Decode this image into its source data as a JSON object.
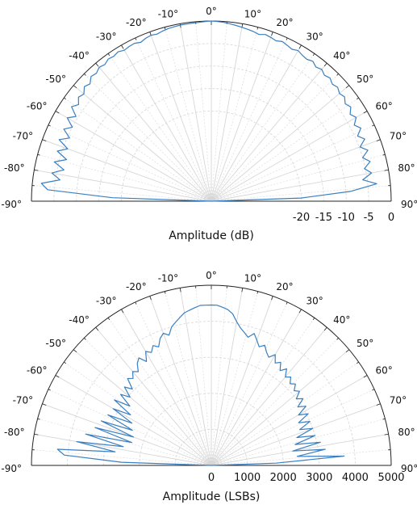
{
  "chart_data": [
    {
      "type": "polar-half",
      "xlabel": "Amplitude (dB)",
      "angle_ticks": [
        "-90°",
        "-80°",
        "-70°",
        "-60°",
        "-50°",
        "-40°",
        "-30°",
        "-20°",
        "-10°",
        "0°",
        "10°",
        "20°",
        "30°",
        "40°",
        "50°",
        "60°",
        "70°",
        "80°",
        "90°"
      ],
      "r_ticks": [
        "-20",
        "-15",
        "-10",
        "-5",
        "0"
      ],
      "r_tick_values": [
        -20,
        -15,
        -10,
        -5,
        0
      ],
      "rlim": [
        -40,
        0
      ],
      "color": "#3a7fc1",
      "series": {
        "angle_deg": [
          -90,
          -88,
          -86,
          -84,
          -82,
          -80,
          -78,
          -76,
          -74,
          -72,
          -70,
          -68,
          -66,
          -64,
          -62,
          -60,
          -58,
          -56,
          -54,
          -52,
          -50,
          -48,
          -46,
          -44,
          -42,
          -40,
          -38,
          -36,
          -34,
          -32,
          -30,
          -28,
          -26,
          -24,
          -22,
          -20,
          -18,
          -16,
          -14,
          -12,
          -10,
          -8,
          -6,
          -4,
          -2,
          0,
          2,
          4,
          6,
          8,
          10,
          12,
          14,
          16,
          18,
          20,
          22,
          24,
          26,
          28,
          30,
          32,
          34,
          36,
          38,
          40,
          42,
          44,
          46,
          48,
          50,
          52,
          54,
          56,
          58,
          60,
          62,
          64,
          66,
          68,
          70,
          72,
          74,
          76,
          78,
          80,
          82,
          84,
          86,
          88,
          90
        ],
        "values_db": [
          -40,
          -18,
          -3.5,
          -2,
          -6,
          -4,
          -6.5,
          -4,
          -6.5,
          -4,
          -6,
          -3.5,
          -5.5,
          -3.5,
          -5,
          -3,
          -4.5,
          -2.5,
          -3.5,
          -2.5,
          -3,
          -2,
          -2.5,
          -1.5,
          -1.8,
          -1.2,
          -1.5,
          -1,
          -1.2,
          -0.9,
          -1.3,
          -1.1,
          -1,
          -1.4,
          -1,
          -0.8,
          -1,
          -0.7,
          -0.5,
          -0.4,
          -0.3,
          -0.3,
          -0.25,
          -0.2,
          -0.1,
          0,
          -0.1,
          -0.2,
          -0.4,
          -0.6,
          -0.8,
          -1,
          -1.2,
          -1.5,
          -1.1,
          -1.3,
          -1.6,
          -1.2,
          -1.5,
          -1.8,
          -1.4,
          -1.8,
          -2,
          -1.6,
          -2.2,
          -1.8,
          -2.4,
          -2,
          -2.6,
          -2.2,
          -2.8,
          -2.4,
          -3.2,
          -2.6,
          -3.6,
          -2.8,
          -4,
          -3,
          -4.4,
          -3.2,
          -4.8,
          -3.4,
          -5,
          -3.6,
          -5.2,
          -3.8,
          -6,
          -3,
          -9,
          -20,
          -40
        ]
      }
    },
    {
      "type": "polar-half",
      "xlabel": "Amplitude (LSBs)",
      "angle_ticks": [
        "-90°",
        "-80°",
        "-70°",
        "-60°",
        "-50°",
        "-40°",
        "-30°",
        "-20°",
        "-10°",
        "0°",
        "10°",
        "20°",
        "30°",
        "40°",
        "50°",
        "60°",
        "70°",
        "80°",
        "90°"
      ],
      "r_ticks": [
        "0",
        "1000",
        "2000",
        "3000",
        "4000",
        "5000"
      ],
      "r_tick_values": [
        0,
        1000,
        2000,
        3000,
        4000,
        5000
      ],
      "rlim": [
        0,
        5000
      ],
      "color": "#3a7fc1",
      "series": {
        "angle_deg": [
          -90,
          -88,
          -86,
          -84,
          -82,
          -80,
          -78,
          -76,
          -74,
          -72,
          -70,
          -68,
          -66,
          -64,
          -62,
          -60,
          -58,
          -56,
          -54,
          -52,
          -50,
          -48,
          -46,
          -44,
          -42,
          -40,
          -38,
          -36,
          -34,
          -32,
          -30,
          -28,
          -26,
          -24,
          -22,
          -20,
          -18,
          -16,
          -14,
          -12,
          -10,
          -8,
          -6,
          -4,
          -2,
          0,
          2,
          4,
          6,
          8,
          10,
          12,
          14,
          16,
          18,
          20,
          22,
          24,
          26,
          28,
          30,
          32,
          34,
          36,
          38,
          40,
          42,
          44,
          46,
          48,
          50,
          52,
          54,
          56,
          58,
          60,
          62,
          64,
          66,
          68,
          70,
          72,
          74,
          76,
          78,
          80,
          82,
          84,
          86,
          88,
          90
        ],
        "values_lsb": [
          0,
          2500,
          4100,
          4300,
          2700,
          3800,
          2500,
          3600,
          2300,
          3400,
          2300,
          3300,
          2400,
          3200,
          2500,
          3150,
          2650,
          3250,
          2800,
          3200,
          2950,
          3250,
          3050,
          3350,
          3250,
          3400,
          3300,
          3500,
          3600,
          3400,
          3650,
          3550,
          3700,
          3600,
          3800,
          3900,
          3800,
          4000,
          4100,
          4200,
          4300,
          4350,
          4400,
          4450,
          4450,
          4450,
          4450,
          4400,
          4350,
          4250,
          4050,
          3900,
          3800,
          3700,
          3850,
          3700,
          3550,
          3650,
          3500,
          3400,
          3550,
          3350,
          3450,
          3250,
          3400,
          3200,
          3300,
          3150,
          3250,
          3100,
          3200,
          3000,
          3150,
          2900,
          3100,
          2800,
          3050,
          2700,
          3000,
          2650,
          3000,
          2500,
          3000,
          2400,
          3100,
          2300,
          3200,
          2400,
          3700,
          1800,
          0
        ]
      }
    }
  ]
}
